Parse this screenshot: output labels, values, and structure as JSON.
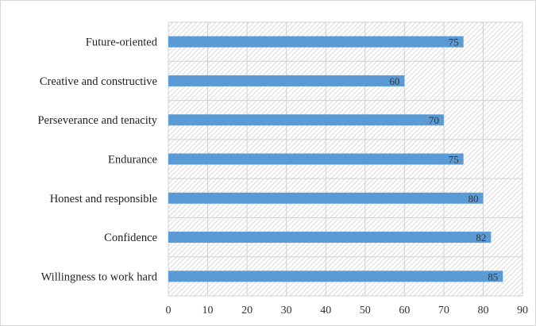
{
  "chart_data": {
    "type": "bar",
    "orientation": "horizontal",
    "categories": [
      "Willingness to work hard",
      "Confidence",
      "Honest and responsible",
      "Endurance",
      "Perseverance and tenacity",
      "Creative and constructive",
      "Future-oriented"
    ],
    "values": [
      85,
      82,
      80,
      75,
      70,
      60,
      75
    ],
    "data_labels": true,
    "title": "",
    "xlabel": "",
    "ylabel": "",
    "xlim": [
      0,
      90
    ],
    "xticks": [
      0,
      10,
      20,
      30,
      40,
      50,
      60,
      70,
      80,
      90
    ],
    "grid": true,
    "legend": "none",
    "bar_color": "#5b9bd5",
    "plot_background": "hatched"
  }
}
